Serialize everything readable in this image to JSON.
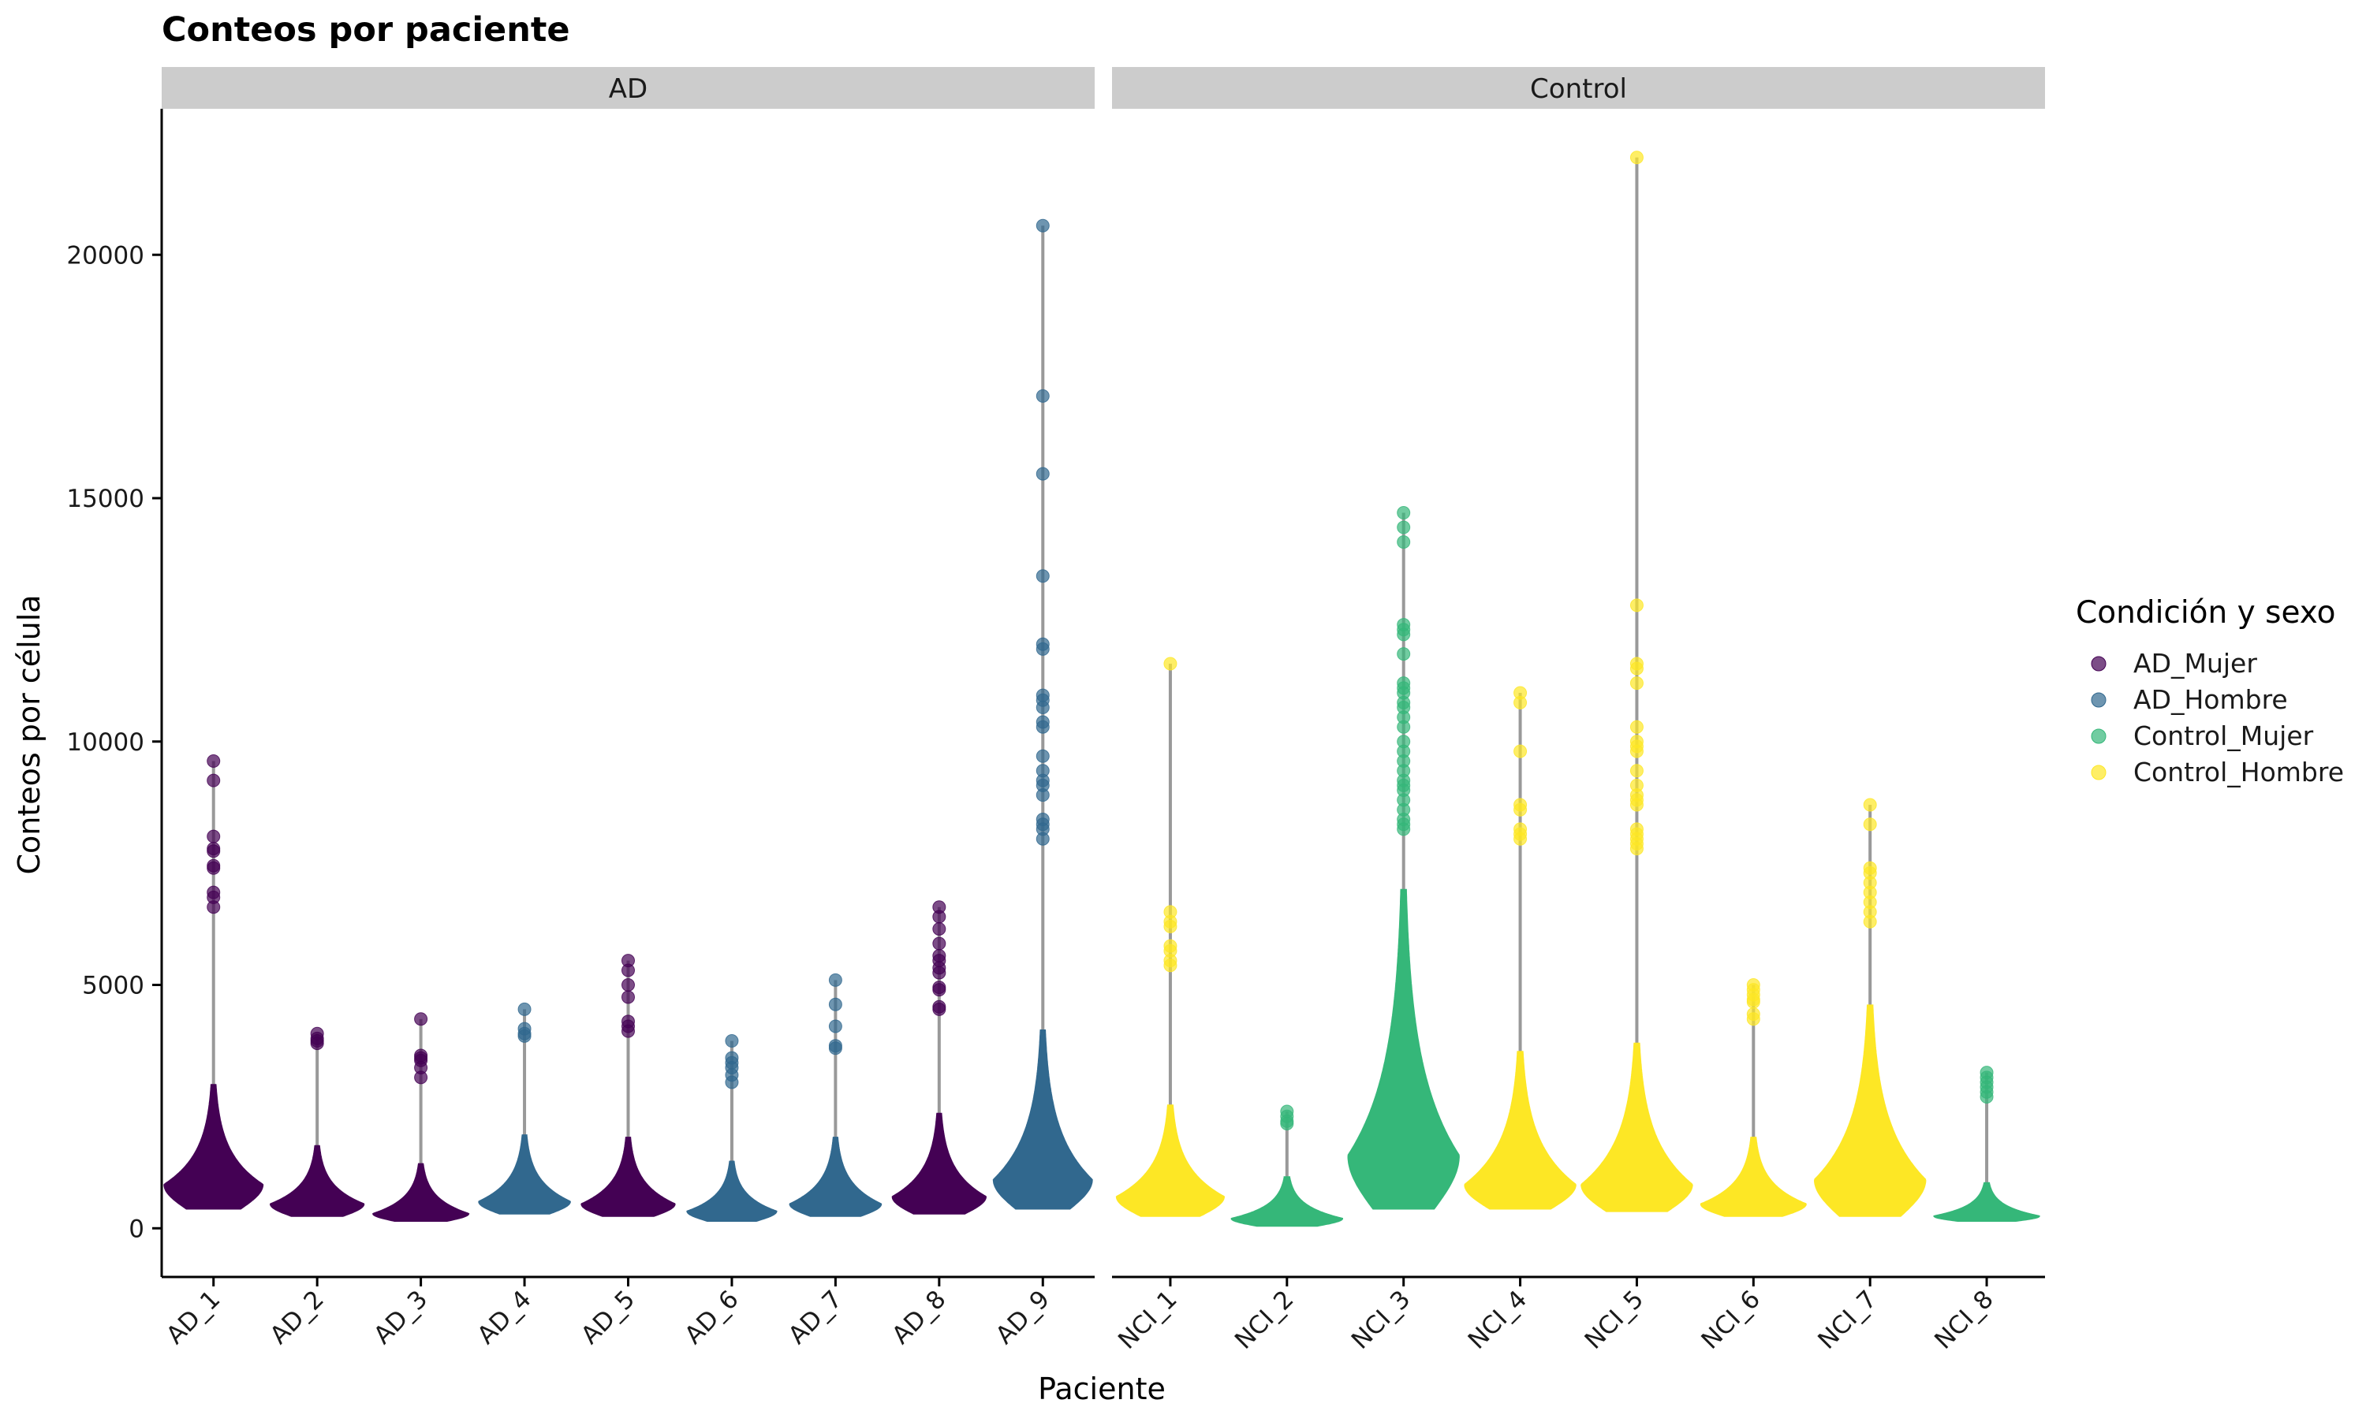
{
  "chart_data": {
    "type": "violin",
    "title": "Conteos por paciente",
    "xlabel": "Paciente",
    "ylabel": "Conteos por célula",
    "ylim": [
      -1000,
      23000
    ],
    "y_ticks": [
      0,
      5000,
      10000,
      15000,
      20000
    ],
    "grid": false,
    "legend": {
      "title": "Condición y sexo",
      "position": "right",
      "entries": [
        {
          "name": "AD_Mujer",
          "color": "#440154"
        },
        {
          "name": "AD_Hombre",
          "color": "#31688E"
        },
        {
          "name": "Control_Mujer",
          "color": "#35B779"
        },
        {
          "name": "Control_Hombre",
          "color": "#FDE725"
        }
      ]
    },
    "panels": [
      {
        "label": "AD",
        "categories": [
          {
            "name": "AD_1",
            "group": "AD_Mujer",
            "min": 400,
            "median": 1000,
            "max": 9600,
            "mode": 900,
            "width": 0.95,
            "outliers": [
              9600,
              9200,
              8050,
              7800,
              7750,
              7450,
              7400,
              6900,
              6800,
              6600
            ]
          },
          {
            "name": "AD_2",
            "group": "AD_Mujer",
            "min": 250,
            "median": 600,
            "max": 4000,
            "mode": 500,
            "width": 0.9,
            "outliers": [
              4000,
              3900,
              3850,
              3800
            ]
          },
          {
            "name": "AD_3",
            "group": "AD_Mujer",
            "min": 150,
            "median": 450,
            "max": 4300,
            "mode": 300,
            "width": 0.92,
            "outliers": [
              4300,
              3550,
              3500,
              3450,
              3300,
              3100
            ]
          },
          {
            "name": "AD_4",
            "group": "AD_Hombre",
            "min": 300,
            "median": 700,
            "max": 4500,
            "mode": 550,
            "width": 0.88,
            "outliers": [
              4500,
              4100,
              4000,
              3950
            ]
          },
          {
            "name": "AD_5",
            "group": "AD_Mujer",
            "min": 250,
            "median": 650,
            "max": 5500,
            "mode": 500,
            "width": 0.9,
            "outliers": [
              5500,
              5300,
              5000,
              4750,
              4250,
              4150,
              4050
            ]
          },
          {
            "name": "AD_6",
            "group": "AD_Hombre",
            "min": 150,
            "median": 450,
            "max": 3850,
            "mode": 350,
            "width": 0.86,
            "outliers": [
              3850,
              3500,
              3400,
              3300,
              3150,
              3000
            ]
          },
          {
            "name": "AD_7",
            "group": "AD_Hombre",
            "min": 250,
            "median": 650,
            "max": 5100,
            "mode": 500,
            "width": 0.88,
            "outliers": [
              5100,
              4600,
              4150,
              3750,
              3700
            ]
          },
          {
            "name": "AD_8",
            "group": "AD_Mujer",
            "min": 300,
            "median": 800,
            "max": 6600,
            "mode": 650,
            "width": 0.9,
            "outliers": [
              6600,
              6400,
              6150,
              5850,
              5600,
              5500,
              5350,
              5250,
              4950,
              4900,
              4550,
              4500
            ]
          },
          {
            "name": "AD_9",
            "group": "AD_Hombre",
            "min": 400,
            "median": 1300,
            "max": 20600,
            "mode": 1000,
            "width": 0.95,
            "outliers": [
              20600,
              17100,
              15500,
              13400,
              12000,
              11900,
              10950,
              10850,
              10700,
              10400,
              10300,
              9700,
              9400,
              9200,
              9100,
              8900,
              8400,
              8300,
              8200,
              8000
            ]
          }
        ]
      },
      {
        "label": "Control",
        "categories": [
          {
            "name": "NCI_1",
            "group": "Control_Hombre",
            "min": 250,
            "median": 800,
            "max": 11600,
            "mode": 650,
            "width": 0.92,
            "outliers": [
              11600,
              6500,
              6300,
              6200,
              5800,
              5700,
              5500,
              5400
            ]
          },
          {
            "name": "NCI_2",
            "group": "Control_Mujer",
            "min": 50,
            "median": 300,
            "max": 2400,
            "mode": 200,
            "width": 0.95,
            "outliers": [
              2400,
              2300,
              2200,
              2150
            ]
          },
          {
            "name": "NCI_3",
            "group": "Control_Mujer",
            "min": 400,
            "median": 2000,
            "max": 14700,
            "mode": 1500,
            "width": 0.95,
            "outliers": [
              14700,
              14400,
              14100,
              12400,
              12300,
              12200,
              11800,
              11200,
              11100,
              11000,
              10800,
              10700,
              10500,
              10300,
              10000,
              9800,
              9600,
              9400,
              9200,
              9100,
              9000,
              8800,
              8600,
              8400,
              8300,
              8200
            ]
          },
          {
            "name": "NCI_4",
            "group": "Control_Hombre",
            "min": 400,
            "median": 1200,
            "max": 11000,
            "mode": 900,
            "width": 0.95,
            "outliers": [
              11000,
              10800,
              9800,
              8700,
              8600,
              8200,
              8100,
              8000
            ]
          },
          {
            "name": "NCI_5",
            "group": "Control_Hombre",
            "min": 350,
            "median": 1200,
            "max": 22000,
            "mode": 900,
            "width": 0.95,
            "outliers": [
              22000,
              12800,
              11600,
              11500,
              11200,
              10300,
              10000,
              9900,
              9800,
              9400,
              9100,
              8900,
              8800,
              8700,
              8200,
              8100,
              8000,
              7900,
              7800
            ]
          },
          {
            "name": "NCI_6",
            "group": "Control_Hombre",
            "min": 250,
            "median": 650,
            "max": 5000,
            "mode": 500,
            "width": 0.9,
            "outliers": [
              5000,
              4900,
              4800,
              4700,
              4650,
              4400,
              4300
            ]
          },
          {
            "name": "NCI_7",
            "group": "Control_Hombre",
            "min": 250,
            "median": 1300,
            "max": 8700,
            "mode": 1000,
            "width": 0.95,
            "outliers": [
              8700,
              8300,
              7400,
              7300,
              7100,
              6900,
              6700,
              6500,
              6300
            ]
          },
          {
            "name": "NCI_8",
            "group": "Control_Mujer",
            "min": 150,
            "median": 350,
            "max": 3200,
            "mode": 250,
            "width": 0.9,
            "outliers": [
              3200,
              3100,
              3000,
              2900,
              2800,
              2700
            ]
          }
        ]
      }
    ]
  }
}
